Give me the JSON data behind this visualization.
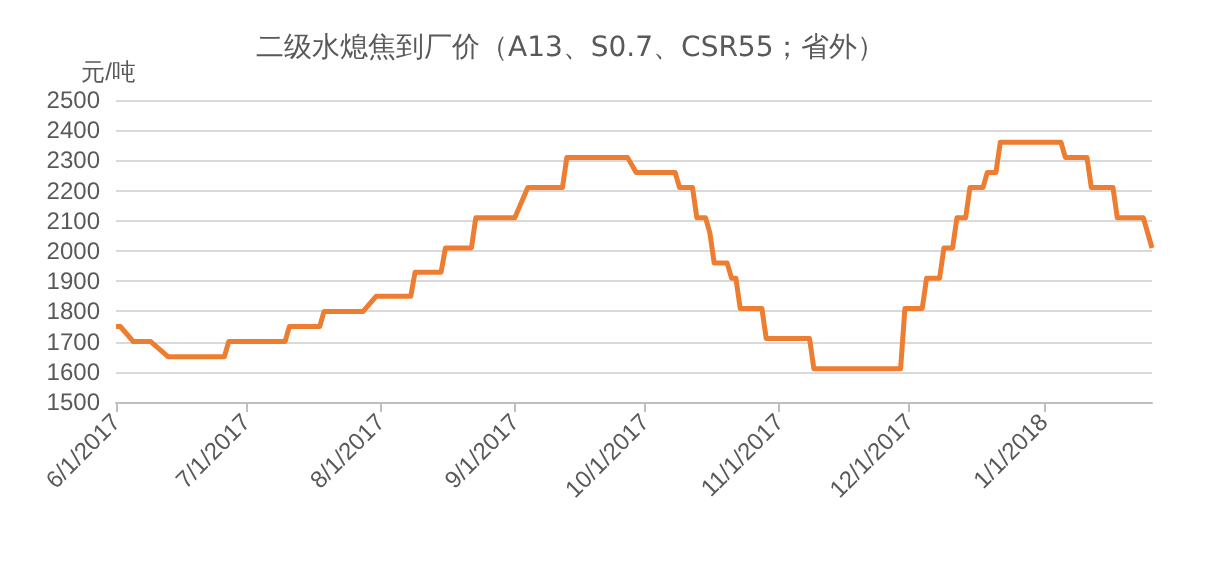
{
  "chart_data": {
    "type": "step",
    "title": "二级水熄焦到厂价（A13、S0.7、CSR55；省外）",
    "ylabel": "元/吨",
    "x": [
      "2017-06-01",
      "2017-06-02",
      "2017-06-05",
      "2017-06-09",
      "2017-06-13",
      "2017-06-26",
      "2017-06-27",
      "2017-07-10",
      "2017-07-11",
      "2017-07-18",
      "2017-07-19",
      "2017-07-28",
      "2017-07-31",
      "2017-08-08",
      "2017-08-09",
      "2017-08-15",
      "2017-08-16",
      "2017-08-22",
      "2017-08-23",
      "2017-09-01",
      "2017-09-04",
      "2017-09-12",
      "2017-09-13",
      "2017-09-27",
      "2017-09-29",
      "2017-10-08",
      "2017-10-09",
      "2017-10-12",
      "2017-10-13",
      "2017-10-15",
      "2017-10-16",
      "2017-10-17",
      "2017-10-20",
      "2017-10-21",
      "2017-10-22",
      "2017-10-23",
      "2017-10-28",
      "2017-10-29",
      "2017-11-08",
      "2017-11-09",
      "2017-11-29",
      "2017-11-30",
      "2017-12-04",
      "2017-12-05",
      "2017-12-08",
      "2017-12-09",
      "2017-12-11",
      "2017-12-12",
      "2017-12-14",
      "2017-12-15",
      "2017-12-18",
      "2017-12-19",
      "2017-12-21",
      "2017-12-22",
      "2018-01-05",
      "2018-01-06",
      "2018-01-11",
      "2018-01-12",
      "2018-01-17",
      "2018-01-18",
      "2018-01-24",
      "2018-01-26"
    ],
    "values": [
      1750,
      1750,
      1700,
      1700,
      1650,
      1650,
      1700,
      1700,
      1750,
      1750,
      1800,
      1800,
      1850,
      1850,
      1930,
      1930,
      2010,
      2010,
      2110,
      2110,
      2210,
      2210,
      2310,
      2310,
      2260,
      2260,
      2210,
      2210,
      2110,
      2110,
      2060,
      1960,
      1960,
      1910,
      1910,
      1810,
      1810,
      1710,
      1710,
      1610,
      1610,
      1810,
      1810,
      1910,
      1910,
      2010,
      2010,
      2110,
      2110,
      2210,
      2210,
      2260,
      2260,
      2360,
      2360,
      2310,
      2310,
      2210,
      2210,
      2110,
      2110,
      2010
    ],
    "color": "#ed7d31",
    "marker": "none",
    "line_style": "solid",
    "grid": "y",
    "xlim": [
      "2017-06-01",
      "2018-01-26"
    ],
    "xticks": [
      {
        "value": "2017-06-01",
        "label": "6/1/2017"
      },
      {
        "value": "2017-07-01",
        "label": "7/1/2017"
      },
      {
        "value": "2017-08-01",
        "label": "8/1/2017"
      },
      {
        "value": "2017-09-01",
        "label": "9/1/2017"
      },
      {
        "value": "2017-10-01",
        "label": "10/1/2017"
      },
      {
        "value": "2017-11-01",
        "label": "11/1/2017"
      },
      {
        "value": "2017-12-01",
        "label": "12/1/2017"
      },
      {
        "value": "2018-01-01",
        "label": "1/1/2018"
      }
    ],
    "ylim": [
      1500,
      2500
    ],
    "yticks": [
      1500,
      1600,
      1700,
      1800,
      1900,
      2000,
      2100,
      2200,
      2300,
      2400,
      2500
    ]
  }
}
